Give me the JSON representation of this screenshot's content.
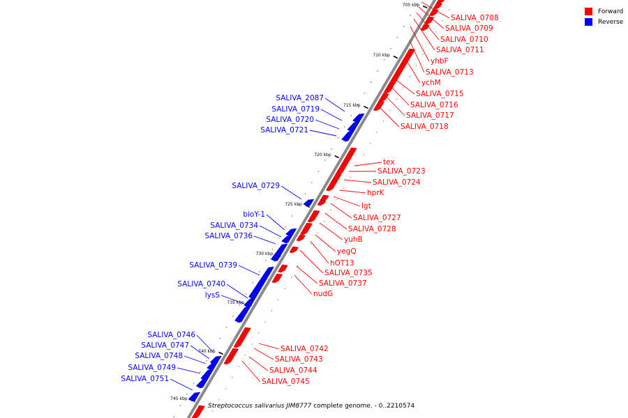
{
  "legend": {
    "forward": {
      "label": "Forward",
      "color": "#ff0000"
    },
    "reverse": {
      "label": "Reverse",
      "color": "#0000ff"
    }
  },
  "caption": {
    "organism": "Streptococcus salivarius JIM8777",
    "rest": "complete genome. - 0..2210574"
  },
  "ticks": [
    "705 kbp",
    "710 kbp",
    "715 kbp",
    "720 kbp",
    "725 kbp",
    "730 kbp",
    "735 kbp",
    "740 kbp",
    "745 kbp"
  ],
  "forward_labels": [
    "SALIVA_0708",
    "SALIVA_0709",
    "SALIVA_0710",
    "SALIVA_0711",
    "yhbF",
    "SALIVA_0713",
    "ychM",
    "SALIVA_0715",
    "SALIVA_0716",
    "SALIVA_0717",
    "SALIVA_0718",
    "tex",
    "SALIVA_0723",
    "SALIVA_0724",
    "hprK",
    "lgt",
    "SALIVA_0727",
    "SALIVA_0728",
    "yuhB",
    "yegQ",
    "hOT13",
    "SALIVA_0735",
    "SALIVA_0737",
    "nudG",
    "SALIVA_0742",
    "SALIVA_0743",
    "SALIVA_0744",
    "SALIVA_0745"
  ],
  "reverse_labels": [
    "SALIVA_2087",
    "SALIVA_0719",
    "SALIVA_0720",
    "SALIVA_0721",
    "SALIVA_0729",
    "bioY-1",
    "SALIVA_0734",
    "SALIVA_0736",
    "SALIVA_0739",
    "SALIVA_0740",
    "lysS",
    "SALIVA_0746",
    "SALIVA_0747",
    "SALIVA_0748",
    "SALIVA_0749",
    "SALIVA_0751"
  ]
}
